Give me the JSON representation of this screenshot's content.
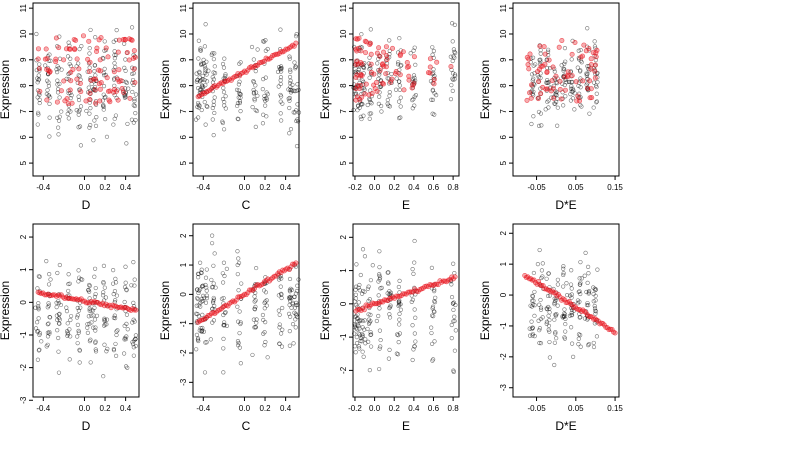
{
  "colors": {
    "observed": "#000000",
    "fitted": "#e8141e",
    "background": "#ffffff"
  },
  "chart_data": [
    {
      "type": "scatter",
      "xlabel": "D",
      "ylabel": "Expression",
      "xticks": [
        "-0.4",
        "0.0",
        "0.2",
        "0.4"
      ],
      "yticks": [
        "5",
        "6",
        "7",
        "8",
        "9",
        "10",
        "11"
      ],
      "xlim": [
        -0.5,
        0.53
      ],
      "ylim": [
        4.5,
        11.2
      ],
      "yticks_rotated": true,
      "observed": {
        "x_clusters": [
          -0.45,
          -0.35,
          -0.25,
          -0.15,
          -0.05,
          0.05,
          0.1,
          0.2,
          0.3,
          0.4,
          0.48
        ],
        "y_range": [
          5.3,
          10.6
        ]
      },
      "fitted": {
        "pattern": "multi-level",
        "levels": [
          7.4,
          7.8,
          8.2,
          8.6,
          9.0,
          9.4,
          9.8
        ],
        "x_range": [
          -0.45,
          0.5
        ]
      }
    },
    {
      "type": "scatter",
      "xlabel": "C",
      "ylabel": "Expression",
      "xticks": [
        "-0.4",
        "0.0",
        "0.2",
        "0.4"
      ],
      "yticks": [
        "5",
        "6",
        "7",
        "8",
        "9",
        "10",
        "11"
      ],
      "xlim": [
        -0.5,
        0.53
      ],
      "ylim": [
        4.5,
        11.2
      ],
      "yticks_rotated": true,
      "observed": {
        "x_clusters": [
          -0.45,
          -0.42,
          -0.38,
          -0.3,
          -0.2,
          -0.05,
          0.1,
          0.2,
          0.35,
          0.45,
          0.5
        ],
        "y_range": [
          5.3,
          10.6
        ]
      },
      "fitted": {
        "pattern": "line",
        "x": [
          -0.45,
          0.5
        ],
        "y": [
          7.6,
          9.6
        ]
      }
    },
    {
      "type": "scatter",
      "xlabel": "E",
      "ylabel": "Expression",
      "xticks": [
        "-0.2",
        "0.0",
        "0.2",
        "0.4",
        "0.6",
        "0.8"
      ],
      "yticks": [
        "5",
        "6",
        "7",
        "8",
        "9",
        "10",
        "11"
      ],
      "xlim": [
        -0.22,
        0.86
      ],
      "ylim": [
        4.5,
        11.2
      ],
      "yticks_rotated": true,
      "observed": {
        "x_clusters": [
          -0.19,
          -0.16,
          -0.12,
          -0.05,
          0.05,
          0.15,
          0.25,
          0.4,
          0.6,
          0.8
        ],
        "y_range": [
          6.0,
          10.6
        ]
      },
      "fitted": {
        "pattern": "curves",
        "x_range": [
          -0.19,
          0.82
        ],
        "y_start_range": [
          7.5,
          9.8
        ]
      }
    },
    {
      "type": "scatter",
      "xlabel": "D*E",
      "ylabel": "Expression",
      "xticks": [
        "-0.05",
        "0.05",
        "0.15"
      ],
      "yticks": [
        "5",
        "6",
        "7",
        "8",
        "9",
        "10",
        "11"
      ],
      "xlim": [
        -0.11,
        0.16
      ],
      "ylim": [
        4.5,
        11.2
      ],
      "yticks_rotated": true,
      "observed": {
        "x_clusters": [
          -0.06,
          -0.04,
          -0.02,
          0.0,
          0.02,
          0.04,
          0.06,
          0.08,
          0.1
        ],
        "y_range": [
          6.0,
          10.4
        ]
      },
      "fitted": {
        "pattern": "band",
        "x_range": [
          -0.08,
          0.15
        ],
        "y_range": [
          7.4,
          9.8
        ]
      }
    },
    {
      "type": "scatter",
      "xlabel": "D",
      "ylabel": "Expression",
      "xticks": [
        "-0.4",
        "0.0",
        "0.2",
        "0.4"
      ],
      "yticks": [
        "-3",
        "-2",
        "-1",
        "0",
        "1",
        "2"
      ],
      "xlim": [
        -0.5,
        0.53
      ],
      "ylim": [
        -2.9,
        2.4
      ],
      "yticks_rotated": true,
      "observed": {
        "x_clusters": [
          -0.45,
          -0.35,
          -0.25,
          -0.15,
          -0.05,
          0.05,
          0.1,
          0.2,
          0.3,
          0.4,
          0.48
        ],
        "y_range": [
          -2.5,
          1.7
        ]
      },
      "fitted": {
        "pattern": "line",
        "x": [
          -0.45,
          0.5
        ],
        "y": [
          0.3,
          -0.25
        ]
      }
    },
    {
      "type": "scatter",
      "xlabel": "C",
      "ylabel": "Expression",
      "xticks": [
        "-0.4",
        "0.0",
        "0.2",
        "0.4"
      ],
      "yticks": [
        "-3",
        "-2",
        "-1",
        "0",
        "1",
        "2"
      ],
      "xlim": [
        -0.5,
        0.53
      ],
      "ylim": [
        -3.5,
        2.4
      ],
      "yticks_rotated": true,
      "observed": {
        "x_clusters": [
          -0.45,
          -0.42,
          -0.38,
          -0.3,
          -0.2,
          -0.05,
          0.1,
          0.2,
          0.35,
          0.45,
          0.5
        ],
        "y_range": [
          -2.9,
          2.2
        ]
      },
      "fitted": {
        "pattern": "line",
        "x": [
          -0.45,
          0.5
        ],
        "y": [
          -0.95,
          1.05
        ]
      }
    },
    {
      "type": "scatter",
      "xlabel": "E",
      "ylabel": "Expression",
      "xticks": [
        "-0.2",
        "0.0",
        "0.2",
        "0.4",
        "0.6",
        "0.8"
      ],
      "yticks": [
        "-2",
        "-1",
        "0",
        "1",
        "2"
      ],
      "xlim": [
        -0.22,
        0.86
      ],
      "ylim": [
        -2.8,
        2.4
      ],
      "yticks_rotated": true,
      "observed": {
        "x_clusters": [
          -0.19,
          -0.16,
          -0.12,
          -0.05,
          0.05,
          0.15,
          0.25,
          0.4,
          0.6,
          0.8
        ],
        "y_range": [
          -2.6,
          2.1
        ]
      },
      "fitted": {
        "pattern": "line",
        "x": [
          -0.19,
          0.82
        ],
        "y": [
          -0.2,
          0.8
        ]
      }
    },
    {
      "type": "scatter",
      "xlabel": "D*E",
      "ylabel": "Expression",
      "xticks": [
        "-0.05",
        "0.05",
        "0.15"
      ],
      "yticks": [
        "-3",
        "-2",
        "-1",
        "0",
        "1",
        "2"
      ],
      "xlim": [
        -0.11,
        0.16
      ],
      "ylim": [
        -3.3,
        2.3
      ],
      "yticks_rotated": true,
      "observed": {
        "x_clusters": [
          -0.06,
          -0.04,
          -0.02,
          0.0,
          0.02,
          0.04,
          0.06,
          0.08,
          0.1
        ],
        "y_range": [
          -2.6,
          1.9
        ]
      },
      "fitted": {
        "pattern": "line",
        "x": [
          -0.08,
          0.15
        ],
        "y": [
          0.65,
          -1.2
        ]
      }
    }
  ]
}
